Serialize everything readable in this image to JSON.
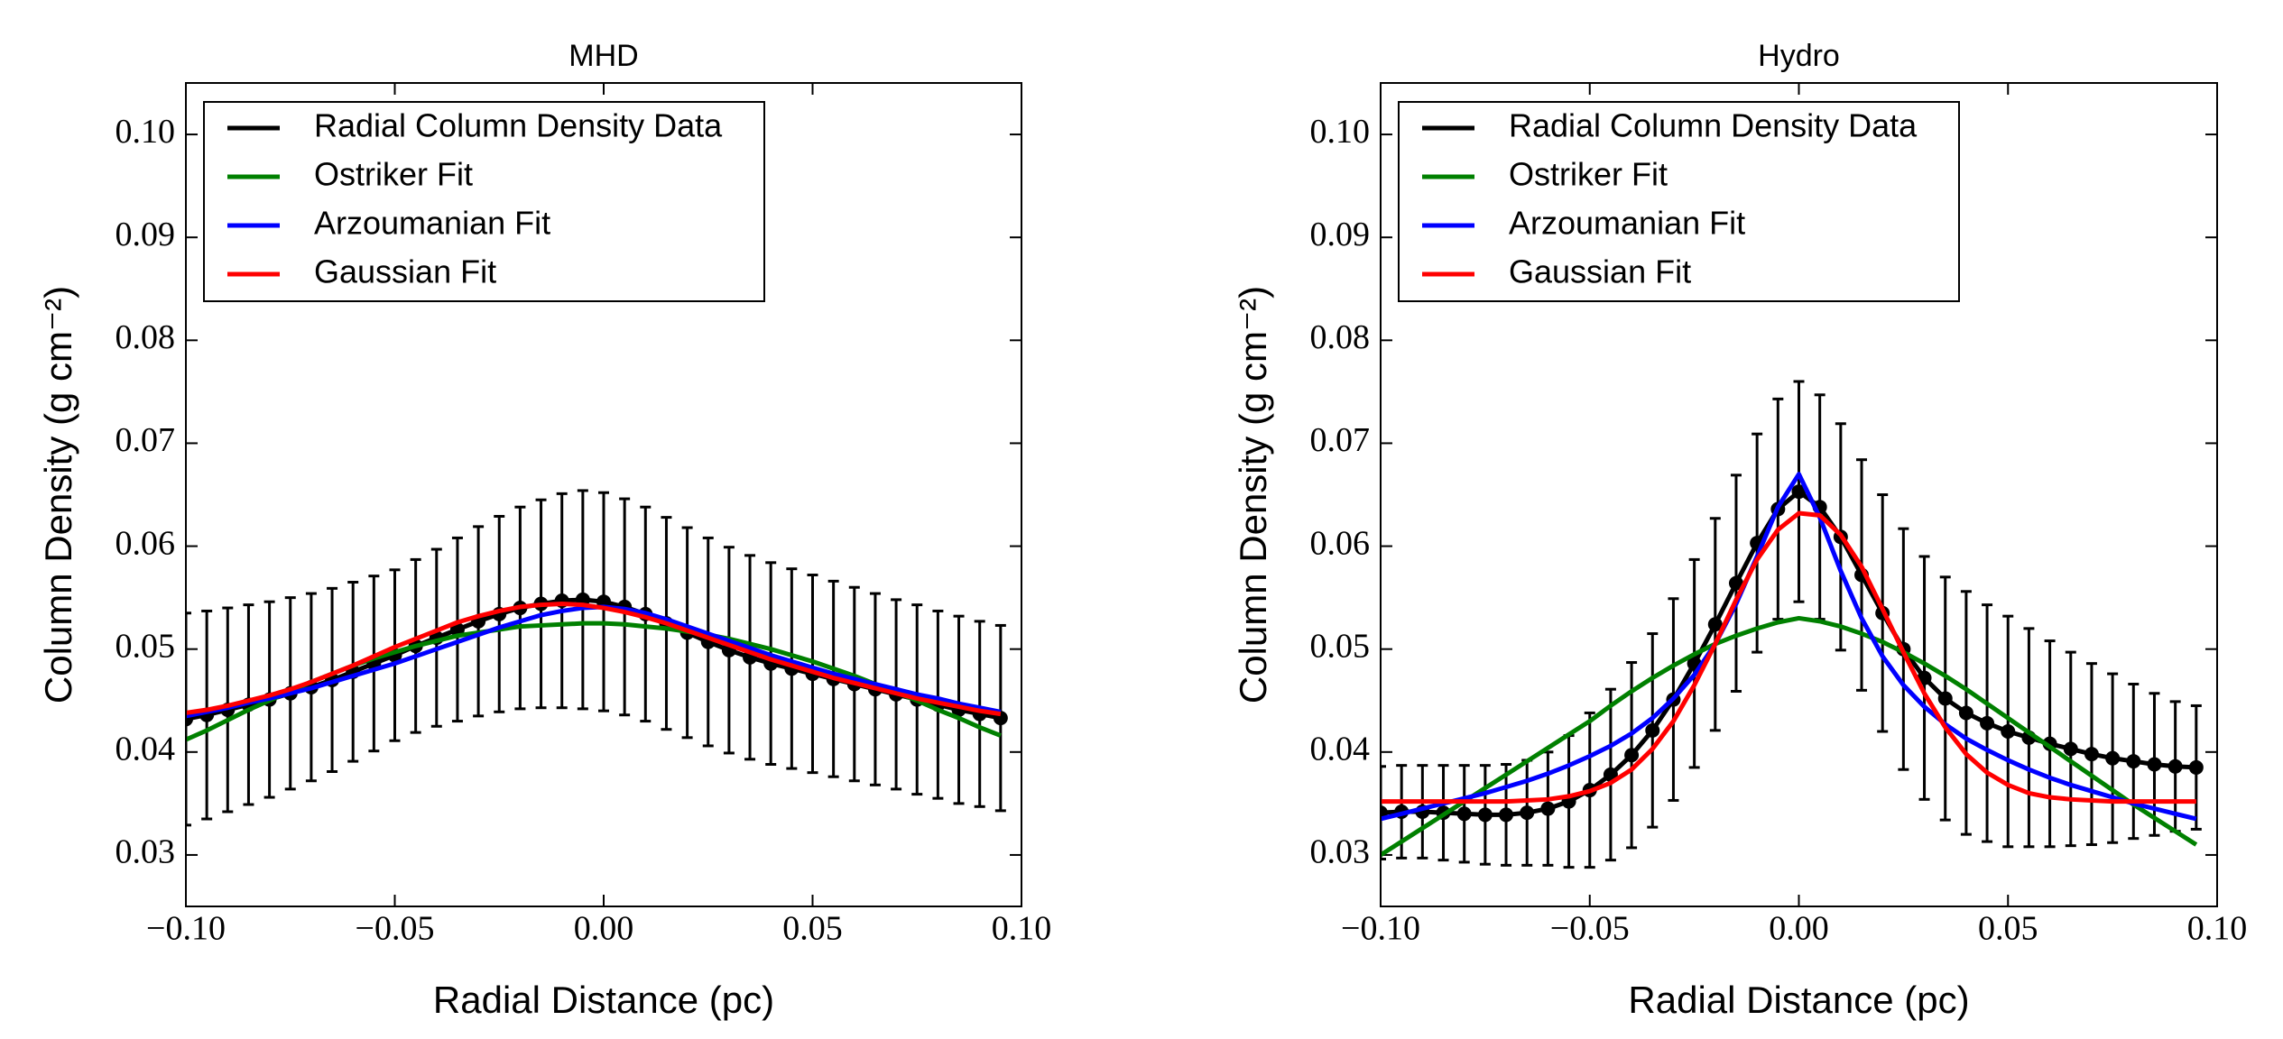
{
  "chart_data": [
    {
      "type": "line",
      "title": "MHD",
      "x_label": "Radial Distance (pc)",
      "y_label": "Column Density (g cm⁻²)",
      "x": [
        -0.1,
        -0.095,
        -0.09,
        -0.085,
        -0.08,
        -0.075,
        -0.07,
        -0.065,
        -0.06,
        -0.055,
        -0.05,
        -0.045,
        -0.04,
        -0.035,
        -0.03,
        -0.025,
        -0.02,
        -0.015,
        -0.01,
        -0.005,
        0,
        0.005,
        0.01,
        0.015,
        0.02,
        0.025,
        0.03,
        0.035,
        0.04,
        0.045,
        0.05,
        0.055,
        0.06,
        0.065,
        0.07,
        0.075,
        0.08,
        0.085,
        0.09,
        0.095
      ],
      "series": [
        {
          "name": "Radial Column Density Data",
          "color": "#000000",
          "values": [
            0.0432,
            0.0436,
            0.0441,
            0.0446,
            0.0451,
            0.0457,
            0.0463,
            0.047,
            0.0478,
            0.0486,
            0.0494,
            0.0503,
            0.0511,
            0.0519,
            0.0527,
            0.0534,
            0.054,
            0.0544,
            0.0547,
            0.0548,
            0.0546,
            0.0541,
            0.0534,
            0.0525,
            0.0516,
            0.0507,
            0.0499,
            0.0492,
            0.0486,
            0.0481,
            0.0476,
            0.0471,
            0.0466,
            0.0461,
            0.0456,
            0.0451,
            0.0446,
            0.0441,
            0.0437,
            0.0433
          ],
          "errors": [
            0.0103,
            0.0101,
            0.0099,
            0.0097,
            0.0095,
            0.0093,
            0.0091,
            0.0089,
            0.0087,
            0.0085,
            0.0083,
            0.0084,
            0.0086,
            0.0089,
            0.0092,
            0.0095,
            0.0098,
            0.0101,
            0.0104,
            0.0106,
            0.0106,
            0.0105,
            0.0104,
            0.0103,
            0.0102,
            0.0101,
            0.01,
            0.0099,
            0.0098,
            0.0097,
            0.0096,
            0.0095,
            0.0094,
            0.0093,
            0.0092,
            0.0092,
            0.0091,
            0.0091,
            0.009,
            0.009
          ]
        },
        {
          "name": "Ostriker Fit",
          "color": "#008000",
          "values": [
            0.0412,
            0.0421,
            0.0431,
            0.0441,
            0.045,
            0.0459,
            0.0468,
            0.0476,
            0.0484,
            0.0491,
            0.0497,
            0.0503,
            0.0508,
            0.0513,
            0.0516,
            0.0519,
            0.0522,
            0.0523,
            0.0524,
            0.0525,
            0.0525,
            0.0524,
            0.0522,
            0.052,
            0.0517,
            0.0514,
            0.051,
            0.0505,
            0.05,
            0.0494,
            0.0488,
            0.0481,
            0.0474,
            0.0466,
            0.0458,
            0.045,
            0.0441,
            0.0433,
            0.0424,
            0.0416
          ]
        },
        {
          "name": "Arzoumanian Fit",
          "color": "#0000ff",
          "values": [
            0.0435,
            0.0439,
            0.0443,
            0.0448,
            0.0452,
            0.0457,
            0.0462,
            0.0468,
            0.0474,
            0.048,
            0.0486,
            0.0493,
            0.05,
            0.0507,
            0.0514,
            0.0521,
            0.0527,
            0.0533,
            0.0537,
            0.054,
            0.0541,
            0.0539,
            0.0535,
            0.0529,
            0.0522,
            0.0515,
            0.0508,
            0.0501,
            0.0494,
            0.0488,
            0.0482,
            0.0476,
            0.0471,
            0.0466,
            0.0461,
            0.0456,
            0.0452,
            0.0447,
            0.0443,
            0.0439
          ]
        },
        {
          "name": "Gaussian Fit",
          "color": "#ff0000",
          "values": [
            0.0438,
            0.0441,
            0.0445,
            0.045,
            0.0455,
            0.0461,
            0.0468,
            0.0476,
            0.0484,
            0.0493,
            0.0502,
            0.051,
            0.0518,
            0.0526,
            0.0532,
            0.0537,
            0.0541,
            0.0543,
            0.0544,
            0.0543,
            0.054,
            0.0536,
            0.0531,
            0.0525,
            0.0518,
            0.0511,
            0.0504,
            0.0497,
            0.049,
            0.0484,
            0.0478,
            0.0472,
            0.0467,
            0.0462,
            0.0457,
            0.0452,
            0.0448,
            0.0444,
            0.044,
            0.0437
          ]
        }
      ],
      "xlim": [
        -0.1,
        0.1
      ],
      "ylim": [
        0.025,
        0.105
      ],
      "xticks": [
        {
          "value": -0.1,
          "label": "−0.10"
        },
        {
          "value": -0.05,
          "label": "−0.05"
        },
        {
          "value": 0,
          "label": "0.00"
        },
        0.05,
        {
          "value": 0.1,
          "label": "0.10"
        }
      ],
      "yticks": [
        0.03,
        0.04,
        0.05,
        0.06,
        0.07,
        0.08,
        0.09,
        {
          "value": 0.1,
          "label": "0.10"
        }
      ],
      "legend": "upper left"
    },
    {
      "type": "line",
      "title": "Hydro",
      "x_label": "Radial Distance (pc)",
      "y_label": "Column Density (g cm⁻²)",
      "x": [
        -0.1,
        -0.095,
        -0.09,
        -0.085,
        -0.08,
        -0.075,
        -0.07,
        -0.065,
        -0.06,
        -0.055,
        -0.05,
        -0.045,
        -0.04,
        -0.035,
        -0.03,
        -0.025,
        -0.02,
        -0.015,
        -0.01,
        -0.005,
        0,
        0.005,
        0.01,
        0.015,
        0.02,
        0.025,
        0.03,
        0.035,
        0.04,
        0.045,
        0.05,
        0.055,
        0.06,
        0.065,
        0.07,
        0.075,
        0.08,
        0.085,
        0.09,
        0.095
      ],
      "series": [
        {
          "name": "Radial Column Density Data",
          "color": "#000000",
          "values": [
            0.0341,
            0.0342,
            0.0342,
            0.0341,
            0.034,
            0.0339,
            0.0339,
            0.0341,
            0.0345,
            0.0352,
            0.0363,
            0.0378,
            0.0397,
            0.0421,
            0.0451,
            0.0486,
            0.0524,
            0.0564,
            0.0603,
            0.0636,
            0.0653,
            0.0638,
            0.0609,
            0.0572,
            0.0535,
            0.05,
            0.0472,
            0.0452,
            0.0438,
            0.0428,
            0.042,
            0.0414,
            0.0408,
            0.0403,
            0.0398,
            0.0394,
            0.0391,
            0.0388,
            0.0386,
            0.0385
          ],
          "errors": [
            0.0045,
            0.0045,
            0.0045,
            0.0046,
            0.0047,
            0.0048,
            0.0049,
            0.0051,
            0.0055,
            0.0064,
            0.0075,
            0.0083,
            0.009,
            0.0094,
            0.0098,
            0.0101,
            0.0103,
            0.0105,
            0.0106,
            0.0107,
            0.0107,
            0.0109,
            0.011,
            0.0112,
            0.0115,
            0.0117,
            0.0118,
            0.0118,
            0.0118,
            0.0115,
            0.0112,
            0.0106,
            0.01,
            0.0094,
            0.0088,
            0.0082,
            0.0075,
            0.0069,
            0.0063,
            0.006
          ]
        },
        {
          "name": "Ostriker Fit",
          "color": "#008000",
          "values": [
            0.03,
            0.0313,
            0.0326,
            0.0339,
            0.0352,
            0.0365,
            0.0378,
            0.0391,
            0.0404,
            0.0417,
            0.043,
            0.0445,
            0.0459,
            0.0472,
            0.0484,
            0.0495,
            0.0505,
            0.0513,
            0.052,
            0.0526,
            0.053,
            0.0527,
            0.0522,
            0.0515,
            0.0507,
            0.0497,
            0.0486,
            0.0474,
            0.0461,
            0.0447,
            0.0433,
            0.0419,
            0.0405,
            0.0391,
            0.0377,
            0.0363,
            0.0349,
            0.0336,
            0.0323,
            0.031
          ]
        },
        {
          "name": "Arzoumanian Fit",
          "color": "#0000ff",
          "values": [
            0.0335,
            0.034,
            0.0345,
            0.035,
            0.0355,
            0.036,
            0.0366,
            0.0372,
            0.0379,
            0.0387,
            0.0396,
            0.0406,
            0.0418,
            0.0433,
            0.0452,
            0.0475,
            0.0505,
            0.0544,
            0.059,
            0.0638,
            0.067,
            0.0628,
            0.0576,
            0.053,
            0.0493,
            0.0465,
            0.0444,
            0.0427,
            0.0413,
            0.0402,
            0.0392,
            0.0383,
            0.0375,
            0.0368,
            0.0362,
            0.0356,
            0.035,
            0.0345,
            0.034,
            0.0335
          ]
        },
        {
          "name": "Gaussian Fit",
          "color": "#ff0000",
          "values": [
            0.0352,
            0.0352,
            0.0352,
            0.0352,
            0.0352,
            0.0352,
            0.0352,
            0.0353,
            0.0354,
            0.0357,
            0.0362,
            0.037,
            0.0383,
            0.0403,
            0.043,
            0.0465,
            0.0505,
            0.0548,
            0.0587,
            0.0616,
            0.0632,
            0.063,
            0.0611,
            0.058,
            0.0539,
            0.0497,
            0.0457,
            0.0424,
            0.0398,
            0.038,
            0.0368,
            0.036,
            0.0356,
            0.0354,
            0.0353,
            0.0352,
            0.0352,
            0.0352,
            0.0352,
            0.0352
          ]
        }
      ],
      "xlim": [
        -0.1,
        0.1
      ],
      "ylim": [
        0.025,
        0.105
      ],
      "xticks": [
        {
          "value": -0.1,
          "label": "−0.10"
        },
        {
          "value": -0.05,
          "label": "−0.05"
        },
        {
          "value": 0,
          "label": "0.00"
        },
        0.05,
        {
          "value": 0.1,
          "label": "0.10"
        }
      ],
      "yticks": [
        0.03,
        0.04,
        0.05,
        0.06,
        0.07,
        0.08,
        0.09,
        {
          "value": 0.1,
          "label": "0.10"
        }
      ],
      "legend": "upper left"
    }
  ]
}
